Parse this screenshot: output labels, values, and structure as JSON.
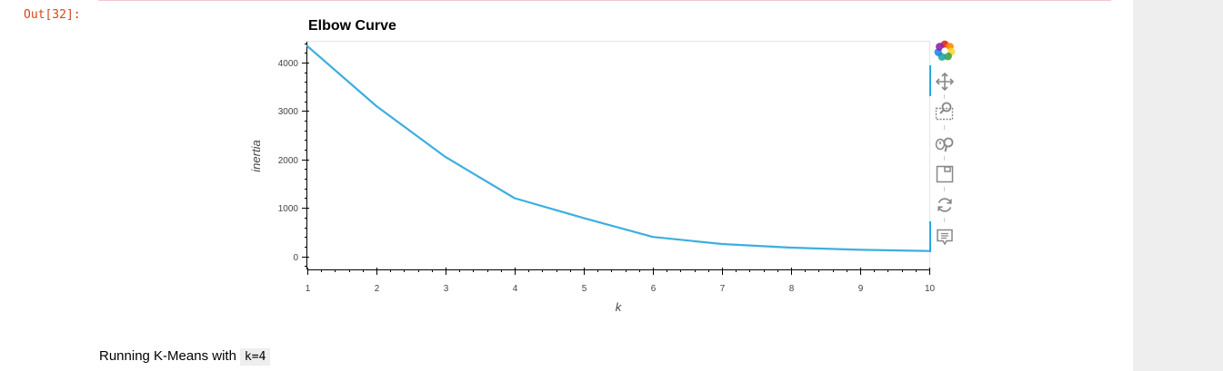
{
  "cell": {
    "prompt": "Out[32]:"
  },
  "chart_data": {
    "type": "line",
    "title": "Elbow Curve",
    "xlabel": "k",
    "ylabel": "inertia",
    "x": [
      1,
      2,
      3,
      4,
      5,
      6,
      7,
      8,
      9,
      10
    ],
    "series": [
      {
        "values": [
          4340,
          3100,
          2050,
          1200,
          790,
          400,
          255,
          180,
          135,
          110
        ]
      }
    ],
    "xlim": [
      1,
      10
    ],
    "ylim": [
      -270,
      4430
    ],
    "xticks": [
      "1",
      "2",
      "3",
      "4",
      "5",
      "6",
      "7",
      "8",
      "9",
      "10"
    ],
    "yticks": [
      "0",
      "1000",
      "2000",
      "3000",
      "4000"
    ],
    "line_color": "#3daee0",
    "grid": false,
    "legend": "none"
  },
  "toolbar": {
    "tools": [
      "bokeh-logo-icon",
      "pan-icon",
      "box-zoom-icon",
      "wheel-zoom-icon",
      "save-icon",
      "reset-icon",
      "hover-icon"
    ],
    "accent": "#26aae1"
  },
  "markdown": {
    "text": "Running K-Means with",
    "code": "k=4"
  }
}
